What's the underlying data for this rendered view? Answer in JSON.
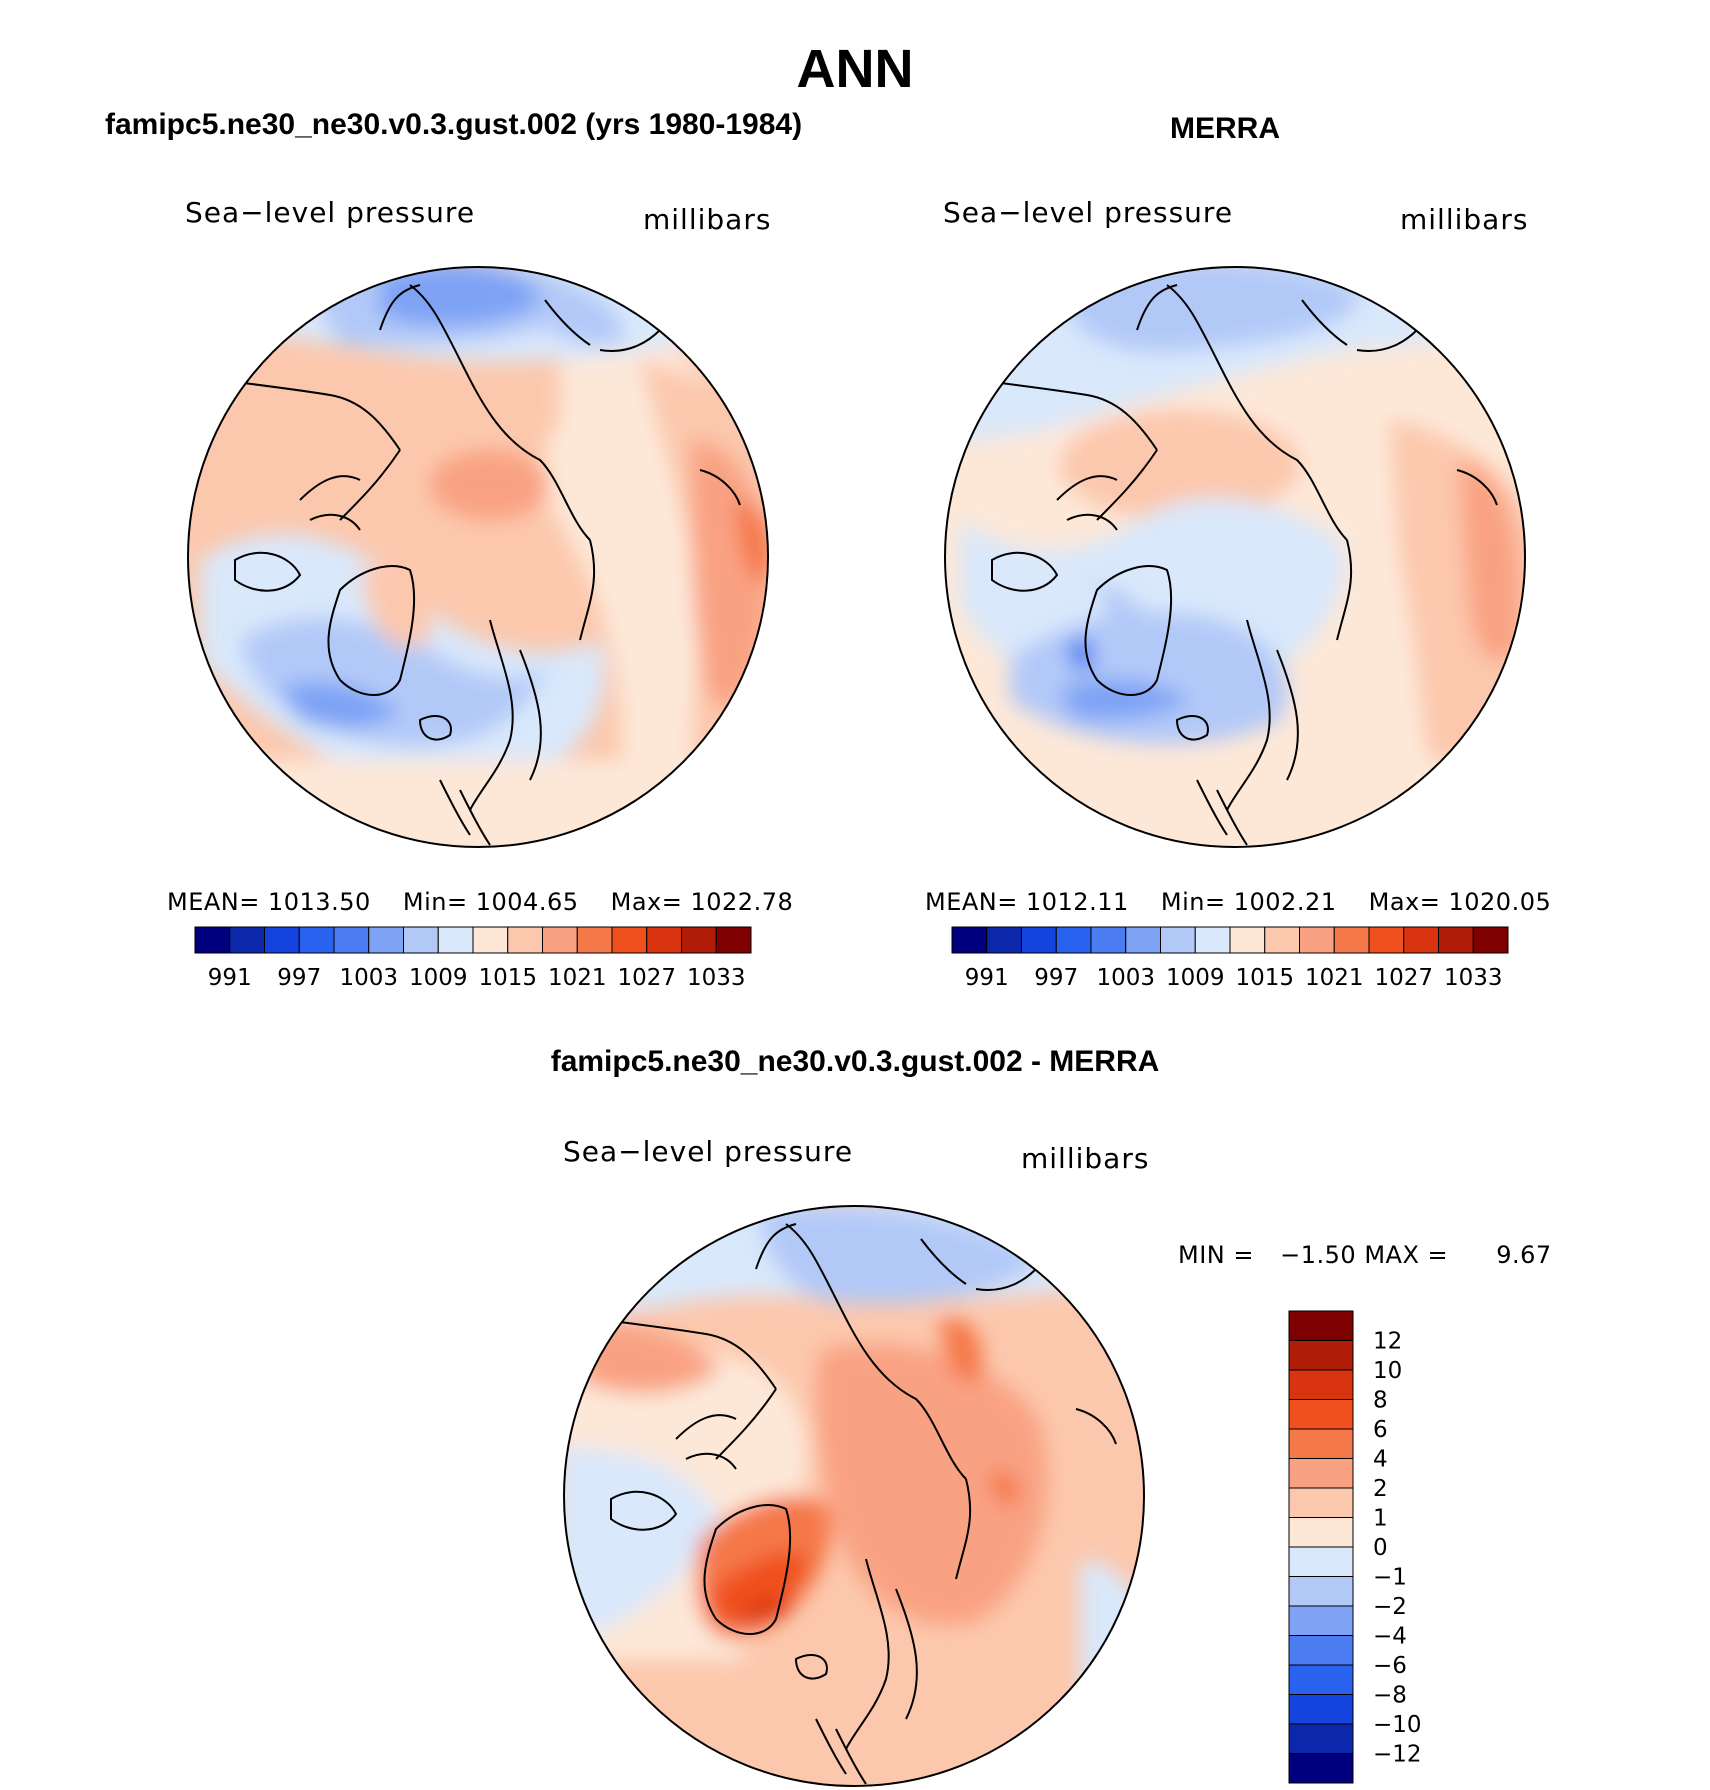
{
  "title": "ANN",
  "panels": {
    "model": {
      "heading": "famipc5.ne30_ne30.v0.3.gust.002 (yrs 1980-1984)",
      "variable": "Sea−level pressure",
      "units": "millibars",
      "mean_label": "MEAN=",
      "mean_value": "1013.50",
      "min_label": "Min=",
      "min_value": "1004.65",
      "max_label": "Max=",
      "max_value": "1022.78"
    },
    "obs": {
      "heading": "MERRA",
      "variable": "Sea−level pressure",
      "units": "millibars",
      "mean_label": "MEAN=",
      "mean_value": "1012.11",
      "min_label": "Min=",
      "min_value": "1002.21",
      "max_label": "Max=",
      "max_value": "1020.05"
    },
    "diff": {
      "heading": "famipc5.ne30_ne30.v0.3.gust.002 - MERRA",
      "variable": "Sea−level pressure",
      "units": "millibars",
      "min_label": "MIN =",
      "min_value": "−1.50",
      "max_label": "MAX =",
      "max_value": "9.67"
    }
  },
  "colorbar_abs": {
    "ticks": [
      "991",
      "997",
      "1003",
      "1009",
      "1015",
      "1021",
      "1027",
      "1033"
    ],
    "colors": [
      "#00007f",
      "#0b27aa",
      "#1444dd",
      "#2a62f0",
      "#4b7cf2",
      "#7ea3f5",
      "#b2c9f8",
      "#d9e8fb",
      "#fde8d8",
      "#fcc8ad",
      "#f9a283",
      "#f57848",
      "#f04f1e",
      "#d93410",
      "#b01c07",
      "#7f0000"
    ]
  },
  "colorbar_diff": {
    "ticks": [
      "12",
      "10",
      "8",
      "6",
      "4",
      "2",
      "1",
      "0",
      "−1",
      "−2",
      "−4",
      "−6",
      "−8",
      "−10",
      "−12"
    ],
    "colors": [
      "#7f0000",
      "#b01c07",
      "#d93410",
      "#f04f1e",
      "#f57848",
      "#f9a283",
      "#fcc8ad",
      "#fde8d8",
      "#d9e8fb",
      "#b2c9f8",
      "#7ea3f5",
      "#4b7cf2",
      "#2a62f0",
      "#1444dd",
      "#0b27aa",
      "#00007f"
    ]
  }
}
